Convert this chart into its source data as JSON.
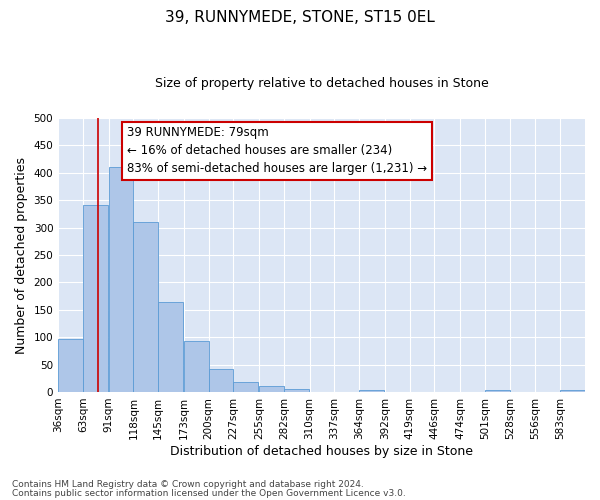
{
  "title": "39, RUNNYMEDE, STONE, ST15 0EL",
  "subtitle": "Size of property relative to detached houses in Stone",
  "xlabel": "Distribution of detached houses by size in Stone",
  "ylabel": "Number of detached properties",
  "footnote1": "Contains HM Land Registry data © Crown copyright and database right 2024.",
  "footnote2": "Contains public sector information licensed under the Open Government Licence v3.0.",
  "bin_labels": [
    "36sqm",
    "63sqm",
    "91sqm",
    "118sqm",
    "145sqm",
    "173sqm",
    "200sqm",
    "227sqm",
    "255sqm",
    "282sqm",
    "310sqm",
    "337sqm",
    "364sqm",
    "392sqm",
    "419sqm",
    "446sqm",
    "474sqm",
    "501sqm",
    "528sqm",
    "556sqm",
    "583sqm"
  ],
  "bin_edges": [
    36,
    63,
    91,
    118,
    145,
    173,
    200,
    227,
    255,
    282,
    310,
    337,
    364,
    392,
    419,
    446,
    474,
    501,
    528,
    556,
    583
  ],
  "bar_values": [
    97,
    341,
    411,
    311,
    164,
    93,
    41,
    18,
    11,
    5,
    0,
    0,
    4,
    0,
    0,
    0,
    0,
    3,
    0,
    0,
    3
  ],
  "bar_color": "#aec6e8",
  "bar_edge_color": "#5b9bd5",
  "ylim": [
    0,
    500
  ],
  "yticks": [
    0,
    50,
    100,
    150,
    200,
    250,
    300,
    350,
    400,
    450,
    500
  ],
  "property_sqm": 79,
  "vline_color": "#cc0000",
  "annotation_text1": "39 RUNNYMEDE: 79sqm",
  "annotation_text2": "← 16% of detached houses are smaller (234)",
  "annotation_text3": "83% of semi-detached houses are larger (1,231) →",
  "annotation_box_facecolor": "#ffffff",
  "annotation_box_edgecolor": "#cc0000",
  "bg_color": "#dce6f5",
  "fig_bg_color": "#ffffff",
  "grid_color": "#ffffff",
  "title_fontsize": 11,
  "subtitle_fontsize": 9,
  "axis_label_fontsize": 9,
  "tick_fontsize": 7.5,
  "annotation_fontsize": 8.5,
  "footnote_fontsize": 6.5
}
